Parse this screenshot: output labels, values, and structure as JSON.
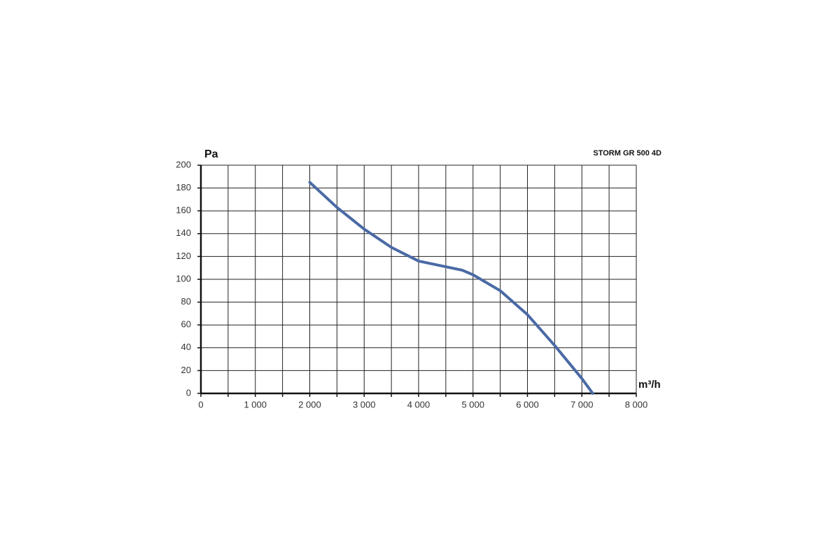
{
  "chart_data": {
    "type": "line",
    "title": "STORM GR 500 4D",
    "ylabel": "Pa",
    "xlabel": "m³/h",
    "x": [
      2000,
      2500,
      3000,
      3500,
      4000,
      4500,
      4800,
      5000,
      5500,
      6000,
      6500,
      7000,
      7200
    ],
    "series": [
      {
        "color": "#4a6aa5",
        "values": [
          185,
          163,
          144,
          128,
          116,
          111,
          108,
          104,
          90,
          69,
          42,
          13,
          0
        ]
      }
    ],
    "xlim": [
      0,
      8000
    ],
    "xticks": [
      0,
      {
        "value": 1000,
        "label": "1 000"
      },
      {
        "value": 2000,
        "label": "2 000"
      },
      {
        "value": 3000,
        "label": "3 000"
      },
      {
        "value": 4000,
        "label": "4 000"
      },
      {
        "value": 5000,
        "label": "5 000"
      },
      {
        "value": 6000,
        "label": "6 000"
      },
      {
        "value": 7000,
        "label": "7 000"
      },
      {
        "value": 8000,
        "label": "8 000"
      }
    ],
    "xgrid": [
      500,
      1500,
      2500,
      3500,
      4500,
      5500,
      6500,
      7500
    ],
    "ylim": [
      0,
      200
    ],
    "yticks": [
      0,
      20,
      40,
      60,
      80,
      100,
      120,
      140,
      160,
      180,
      200
    ],
    "grid": true
  }
}
